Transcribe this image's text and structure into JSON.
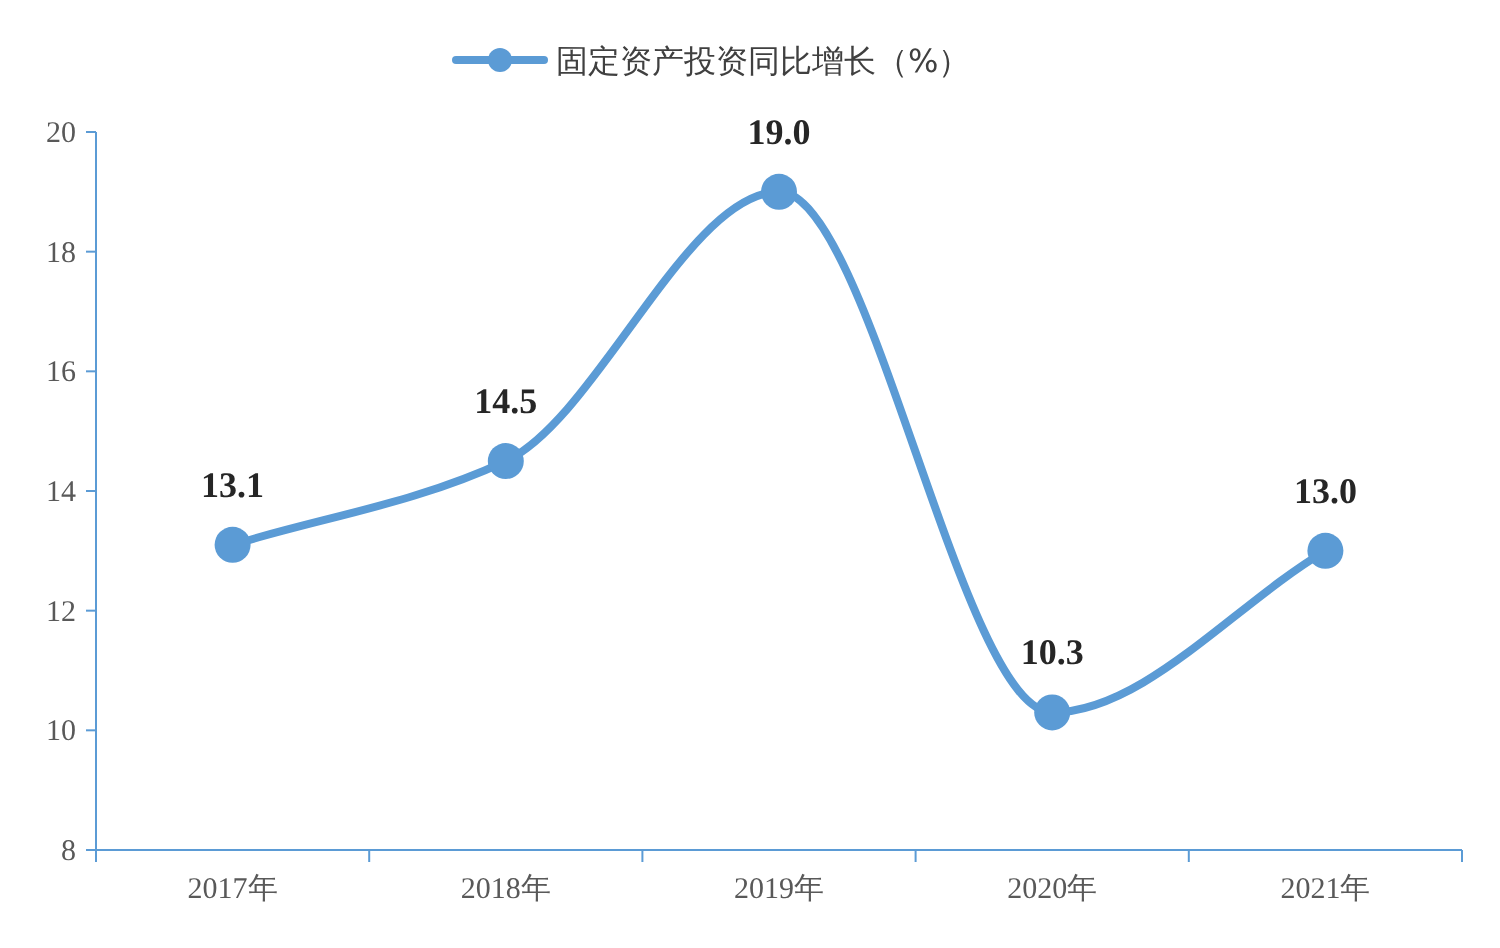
{
  "chart_data": {
    "type": "line",
    "categories": [
      "2017年",
      "2018年",
      "2019年",
      "2020年",
      "2021年"
    ],
    "series": [
      {
        "name": "固定资产投资同比增长（%）",
        "color": "#5b9bd5",
        "values": [
          13.1,
          14.5,
          19.0,
          10.3,
          13.0
        ]
      }
    ],
    "ylim": [
      8,
      20
    ],
    "yticks": [
      8,
      10,
      12,
      14,
      16,
      18,
      20
    ],
    "value_labels": [
      "13.1",
      "14.5",
      "19.0",
      "10.3",
      "13.0"
    ],
    "grid": false,
    "legend": "top",
    "marker": "circle",
    "line_style": "solid"
  }
}
